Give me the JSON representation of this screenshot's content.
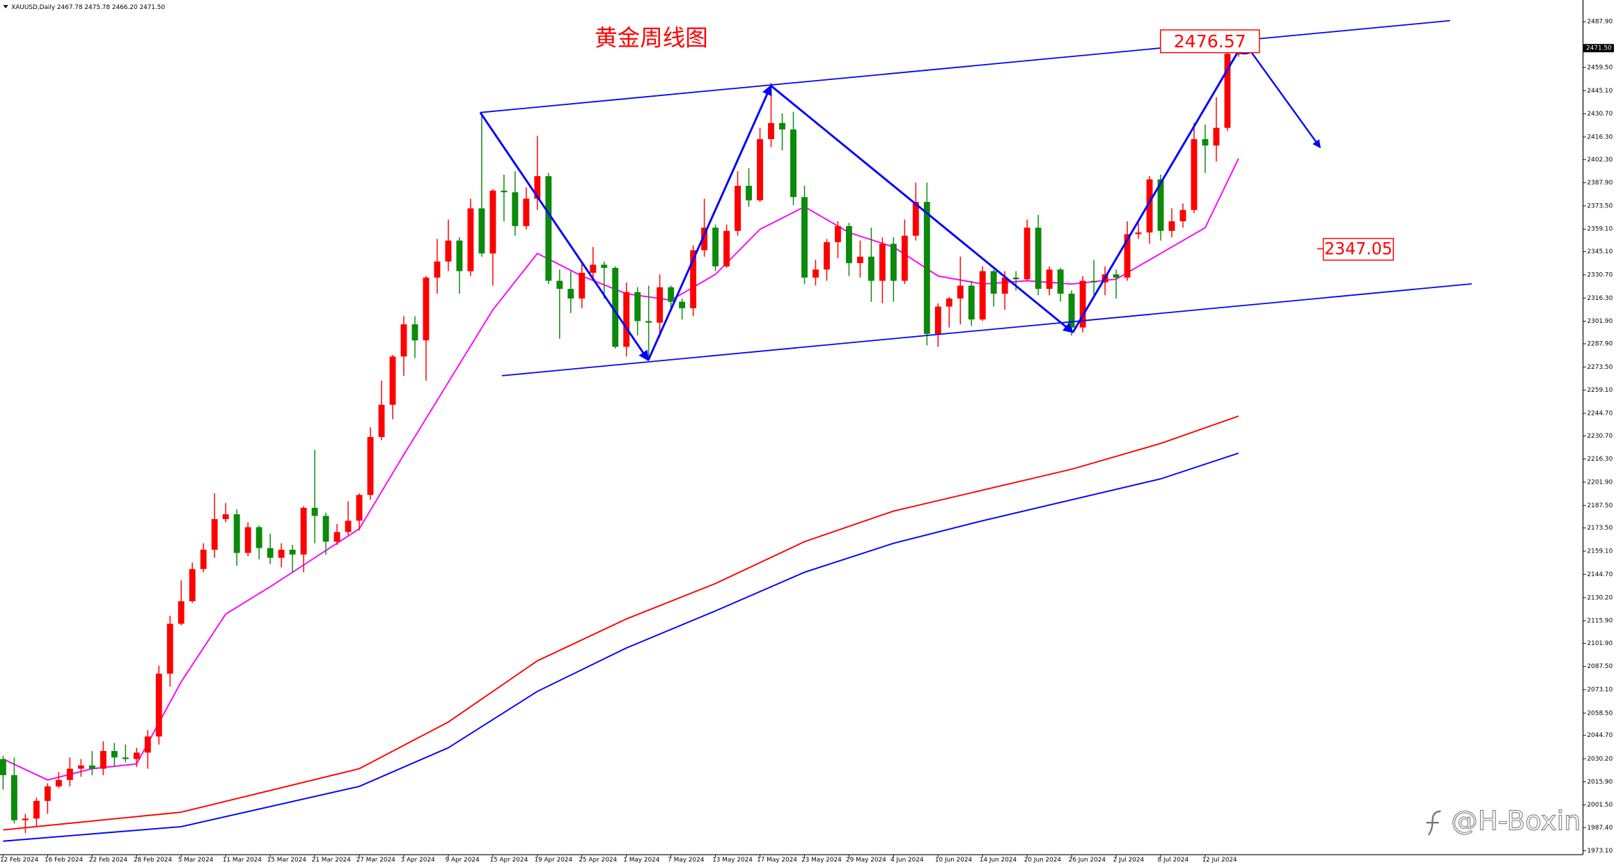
{
  "chart_data": {
    "type": "candlestick",
    "header": "XAUUSD,Daily 2467.78 2475.78 2466.20 2471.50",
    "title": "黄金周线图",
    "annotations": [
      "2476.57",
      "2347.05"
    ],
    "watermark": "@H-Boxin",
    "up_color": "#ff0000",
    "down_color": "#0b8a0b",
    "last_price": {
      "value": 2471.5,
      "label": "2471.50"
    },
    "categories": [
      "12 Feb 2024",
      null,
      null,
      null,
      "16 Feb 2024",
      null,
      null,
      null,
      "22 Feb 2024",
      null,
      null,
      null,
      "28 Feb 2024",
      null,
      null,
      null,
      "5 Mar 2024",
      null,
      null,
      null,
      "11 Mar 2024",
      null,
      null,
      null,
      "15 Mar 2024",
      null,
      null,
      null,
      "21 Mar 2024",
      null,
      null,
      null,
      "27 Mar 2024",
      null,
      null,
      null,
      "3 Apr 2024",
      null,
      null,
      null,
      "9 Apr 2024",
      null,
      null,
      null,
      "15 Apr 2024",
      null,
      null,
      null,
      "19 Apr 2024",
      null,
      null,
      null,
      "25 Apr 2024",
      null,
      null,
      null,
      "1 May 2024",
      null,
      null,
      null,
      "7 May 2024",
      null,
      null,
      null,
      "13 May 2024",
      null,
      null,
      null,
      "17 May 2024",
      null,
      null,
      null,
      "23 May 2024",
      null,
      null,
      null,
      "29 May 2024",
      null,
      null,
      null,
      "4 Jun 2024",
      null,
      null,
      null,
      "10 Jun 2024",
      null,
      null,
      null,
      "14 Jun 2024",
      null,
      null,
      null,
      "20 Jun 2024",
      null,
      null,
      null,
      "26 Jun 2024",
      null,
      null,
      null,
      "2 Jul 2024",
      null,
      null,
      null,
      "8 Jul 2024",
      null,
      null,
      null,
      "12 Jul 2024",
      null,
      null,
      null
    ],
    "open": [
      2030,
      2020,
      1992,
      1993,
      2004,
      2013,
      2017,
      2024,
      2026,
      2024,
      2035,
      2031,
      2030,
      2034,
      2044,
      2083,
      2114,
      2128,
      2148,
      2160,
      2179,
      2182,
      2158,
      2174,
      2161,
      2155,
      2160,
      2157,
      2186,
      2181,
      2165,
      2171,
      2178,
      2194,
      2230,
      2250,
      2280,
      2300,
      2290,
      2329,
      2339,
      2352,
      2333,
      2372,
      2344,
      2383,
      2382,
      2361,
      2378,
      2392,
      2327,
      2322,
      2316,
      2332,
      2337,
      2335,
      2286,
      2320,
      2302,
      2301,
      2323,
      2314,
      2310,
      2346,
      2360,
      2336,
      2358,
      2386,
      2377,
      2415,
      2425,
      2421,
      2379,
      2329,
      2334,
      2351,
      2361,
      2338,
      2342,
      2327,
      2350,
      2327,
      2355,
      2376,
      2294,
      2311,
      2316,
      2324,
      2303,
      2333,
      2319,
      2329,
      2328,
      2360,
      2322,
      2334,
      2319,
      2298,
      2327,
      2326,
      2331,
      2329,
      2356,
      2357,
      2390,
      2358,
      2364,
      2371,
      2415,
      2411,
      2422,
      2467.78
    ],
    "high": [
      2032,
      2031,
      1996,
      2006,
      2015,
      2022,
      2031,
      2030,
      2035,
      2041,
      2040,
      2039,
      2037,
      2048,
      2088,
      2119,
      2141,
      2152,
      2164,
      2195,
      2189,
      2185,
      2177,
      2175,
      2170,
      2164,
      2163,
      2187,
      2222,
      2183,
      2176,
      2190,
      2195,
      2236,
      2265,
      2281,
      2305,
      2305,
      2330,
      2353,
      2365,
      2354,
      2378,
      2431,
      2384,
      2393,
      2395,
      2385,
      2417,
      2394,
      2334,
      2333,
      2338,
      2348,
      2339,
      2336,
      2326,
      2323,
      2324,
      2331,
      2324,
      2316,
      2349,
      2378,
      2362,
      2362,
      2395,
      2397,
      2422,
      2450,
      2431,
      2432,
      2386,
      2340,
      2353,
      2364,
      2363,
      2352,
      2360,
      2354,
      2354,
      2365,
      2388,
      2388,
      2313,
      2317,
      2342,
      2327,
      2336,
      2334,
      2333,
      2333,
      2365,
      2368,
      2336,
      2335,
      2321,
      2330,
      2340,
      2336,
      2334,
      2364,
      2363,
      2392,
      2393,
      2372,
      2375,
      2425,
      2424,
      2441,
      2470,
      2475.78
    ],
    "low": [
      2011,
      1990,
      1984,
      1988,
      1996,
      2012,
      2013,
      2019,
      2020,
      2020,
      2025,
      2028,
      2025,
      2024,
      2039,
      2075,
      2113,
      2127,
      2146,
      2155,
      2177,
      2150,
      2156,
      2154,
      2151,
      2149,
      2146,
      2146,
      2164,
      2157,
      2163,
      2169,
      2172,
      2191,
      2228,
      2241,
      2268,
      2279,
      2265,
      2319,
      2333,
      2319,
      2330,
      2342,
      2324,
      2364,
      2355,
      2359,
      2371,
      2325,
      2291,
      2307,
      2310,
      2328,
      2316,
      2285,
      2280,
      2293,
      2278,
      2292,
      2309,
      2303,
      2305,
      2342,
      2333,
      2335,
      2355,
      2373,
      2376,
      2410,
      2408,
      2374,
      2325,
      2324,
      2327,
      2341,
      2330,
      2329,
      2314,
      2313,
      2314,
      2325,
      2352,
      2287,
      2286,
      2298,
      2300,
      2299,
      2302,
      2311,
      2309,
      2321,
      2327,
      2318,
      2318,
      2314,
      2293,
      2295,
      2318,
      2318,
      2316,
      2327,
      2353,
      2350,
      2352,
      2354,
      2360,
      2369,
      2394,
      2401,
      2420,
      2466.2
    ],
    "close": [
      2020,
      1992,
      1993,
      2004,
      2013,
      2017,
      2024,
      2026,
      2024,
      2035,
      2031,
      2030,
      2034,
      2044,
      2083,
      2114,
      2128,
      2148,
      2160,
      2179,
      2182,
      2158,
      2174,
      2161,
      2155,
      2160,
      2157,
      2186,
      2181,
      2165,
      2171,
      2178,
      2194,
      2230,
      2250,
      2280,
      2300,
      2290,
      2329,
      2339,
      2352,
      2333,
      2372,
      2344,
      2383,
      2382,
      2361,
      2378,
      2392,
      2327,
      2322,
      2316,
      2332,
      2337,
      2335,
      2286,
      2320,
      2302,
      2301,
      2323,
      2314,
      2310,
      2346,
      2360,
      2336,
      2358,
      2386,
      2377,
      2415,
      2425,
      2421,
      2379,
      2329,
      2334,
      2351,
      2361,
      2338,
      2342,
      2327,
      2350,
      2327,
      2355,
      2376,
      2294,
      2311,
      2316,
      2324,
      2303,
      2333,
      2319,
      2329,
      2328,
      2360,
      2322,
      2334,
      2319,
      2298,
      2327,
      2326,
      2331,
      2329,
      2356,
      2357,
      2390,
      2358,
      2364,
      2371,
      2415,
      2411,
      2422,
      2468,
      2471.5
    ],
    "lines": [
      {
        "color": "#ff00ff",
        "x": [
          0,
          4,
          8,
          12,
          16,
          20,
          24,
          28,
          32,
          36,
          40,
          44,
          48,
          52,
          56,
          60,
          64,
          68,
          72,
          76,
          80,
          84,
          88,
          92,
          96,
          100,
          104,
          108,
          111
        ],
        "values": [
          2030,
          2017,
          2024,
          2027,
          2078,
          2120,
          2137,
          2155,
          2173,
          2219,
          2264,
          2309,
          2344,
          2330,
          2319,
          2315,
          2331,
          2359,
          2373,
          2357,
          2348,
          2330,
          2325,
          2327,
          2325,
          2328,
          2344,
          2360,
          2403
        ]
      },
      {
        "color": "#ff0000",
        "x": [
          0,
          16,
          32,
          40,
          48,
          56,
          64,
          72,
          80,
          88,
          96,
          104,
          111
        ],
        "values": [
          1986,
          1997,
          2024,
          2053,
          2091,
          2117,
          2139,
          2165,
          2184,
          2197,
          2210,
          2226,
          2243
        ]
      },
      {
        "color": "#0000ff",
        "x": [
          0,
          16,
          32,
          40,
          48,
          56,
          64,
          72,
          80,
          88,
          96,
          104,
          111
        ],
        "values": [
          1979,
          1988,
          2013,
          2037,
          2072,
          2099,
          2122,
          2146,
          2164,
          2178,
          2191,
          2204,
          2220
        ]
      }
    ],
    "ylim": [
      1970.6,
      2501.4
    ],
    "yticks": [
      {
        "value": 2487.9,
        "label": "2487.90"
      },
      {
        "value": 2459.5,
        "label": "2459.50"
      },
      {
        "value": 2445.1,
        "label": "2445.10"
      },
      {
        "value": 2430.7,
        "label": "2430.70"
      },
      {
        "value": 2416.3,
        "label": "2416.30"
      },
      {
        "value": 2402.3,
        "label": "2402.30"
      },
      {
        "value": 2387.9,
        "label": "2387.90"
      },
      {
        "value": 2373.5,
        "label": "2373.50"
      },
      {
        "value": 2359.1,
        "label": "2359.10"
      },
      {
        "value": 2345.1,
        "label": "2345.10"
      },
      {
        "value": 2330.7,
        "label": "2330.70"
      },
      {
        "value": 2316.3,
        "label": "2316.30"
      },
      {
        "value": 2301.9,
        "label": "2301.90"
      },
      {
        "value": 2287.9,
        "label": "2287.90"
      },
      {
        "value": 2273.5,
        "label": "2273.50"
      },
      {
        "value": 2259.1,
        "label": "2259.10"
      },
      {
        "value": 2244.7,
        "label": "2244.70"
      },
      {
        "value": 2230.7,
        "label": "2230.70"
      },
      {
        "value": 2216.3,
        "label": "2216.30"
      },
      {
        "value": 2201.9,
        "label": "2201.90"
      },
      {
        "value": 2187.5,
        "label": "2187.50"
      },
      {
        "value": 2173.5,
        "label": "2173.50"
      },
      {
        "value": 2159.1,
        "label": "2159.10"
      },
      {
        "value": 2144.7,
        "label": "2144.70"
      },
      {
        "value": 2130.2,
        "label": "2130.20"
      },
      {
        "value": 2115.9,
        "label": "2115.90"
      },
      {
        "value": 2101.9,
        "label": "2101.90"
      },
      {
        "value": 2087.5,
        "label": "2087.50"
      },
      {
        "value": 2073.1,
        "label": "2073.10"
      },
      {
        "value": 2058.5,
        "label": "2058.50"
      },
      {
        "value": 2044.7,
        "label": "2044.70"
      },
      {
        "value": 2030.2,
        "label": "2030.20"
      },
      {
        "value": 2015.9,
        "label": "2015.90"
      },
      {
        "value": 2001.5,
        "label": "2001.50"
      },
      {
        "value": 1987.4,
        "label": "1987.40"
      },
      {
        "value": 1973.1,
        "label": "1973.10"
      }
    ]
  }
}
